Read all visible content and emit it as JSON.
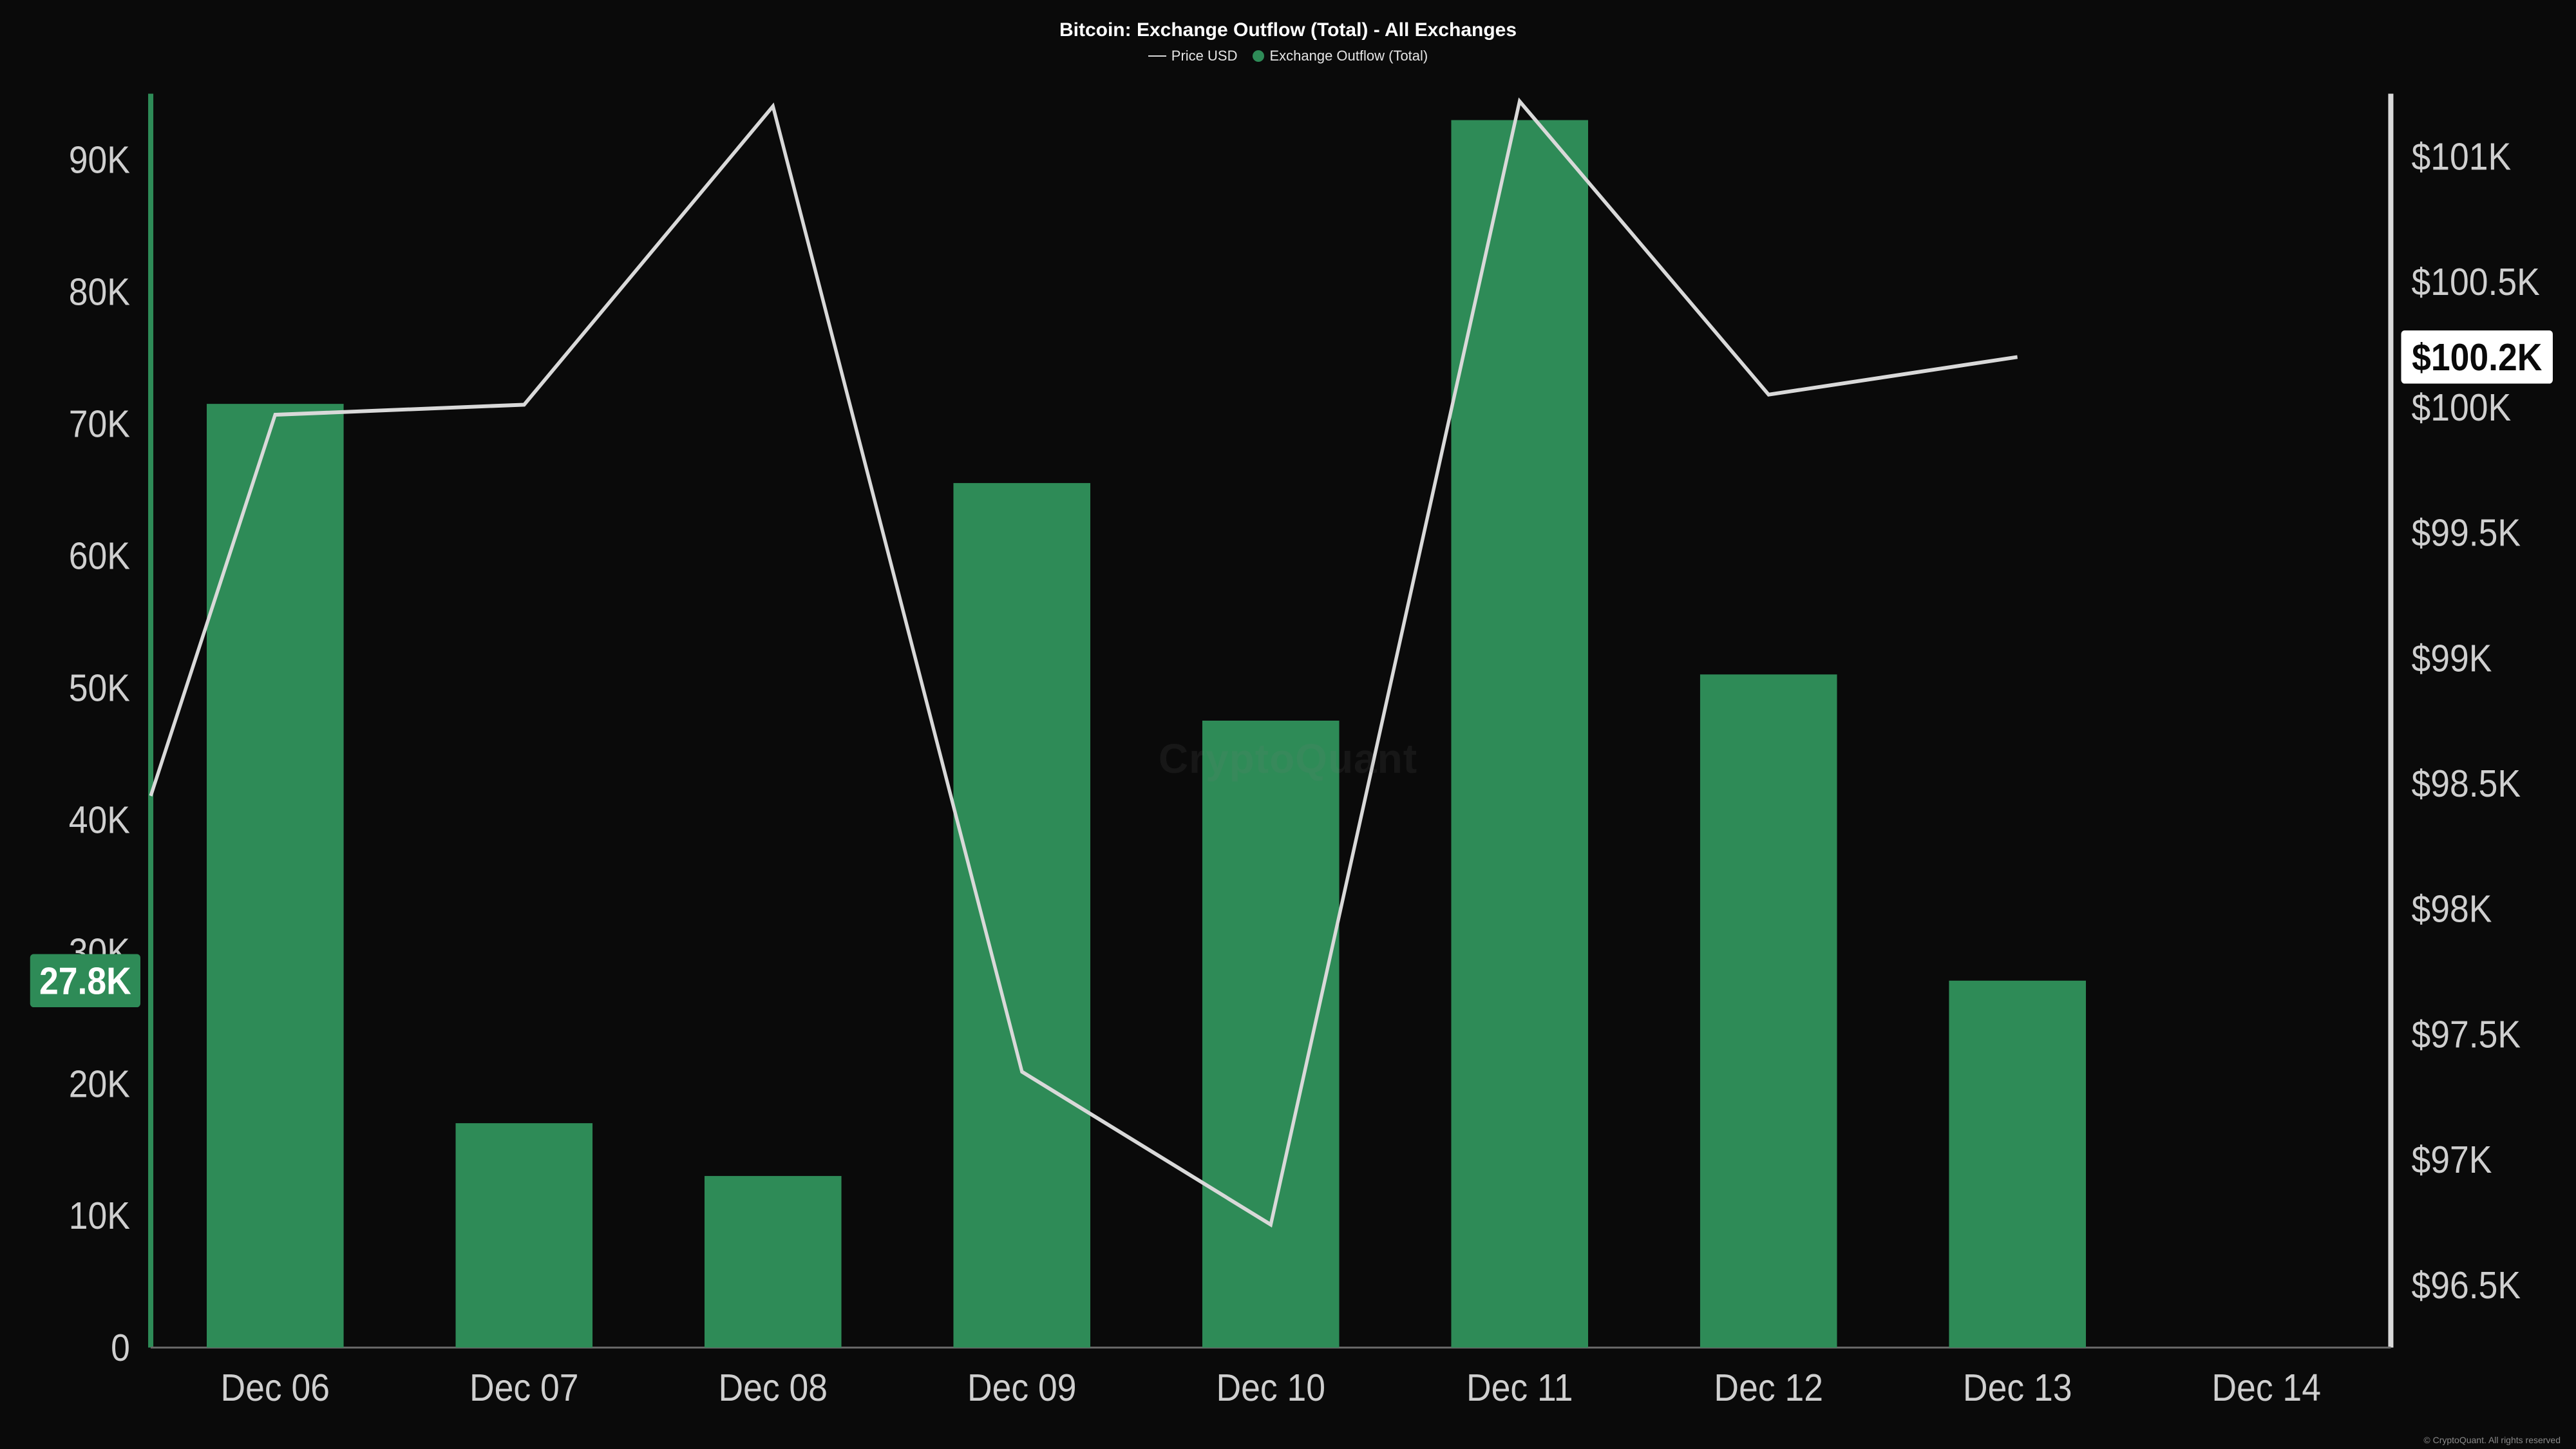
{
  "chart": {
    "type": "bar+line",
    "title": "Bitcoin: Exchange Outflow (Total) - All Exchanges",
    "background_color": "#0a0a0a",
    "watermark": "CryptoQuant",
    "copyright": "© CryptoQuant. All rights reserved",
    "legend": {
      "line_label": "Price USD",
      "bar_label": "Exchange Outflow (Total)",
      "line_color": "#d9d9d9",
      "bar_color": "#2e8b57"
    },
    "x": {
      "categories": [
        "Dec 06",
        "Dec 07",
        "Dec 08",
        "Dec 09",
        "Dec 10",
        "Dec 11",
        "Dec 12",
        "Dec 13",
        "Dec 14"
      ],
      "label_fontsize": 20,
      "label_color": "#cfcfcf"
    },
    "y_left": {
      "min": 0,
      "max": 95000,
      "ticks": [
        0,
        10000,
        20000,
        30000,
        40000,
        50000,
        60000,
        70000,
        80000,
        90000
      ],
      "tick_labels": [
        "0",
        "10K",
        "20K",
        "30K",
        "40K",
        "50K",
        "60K",
        "70K",
        "80K",
        "90K"
      ],
      "axis_line_color": "#2e8b57",
      "label_fontsize": 20,
      "label_color": "#cfcfcf",
      "current_value": 27800,
      "current_label": "27.8K",
      "current_badge_bg": "#2e8b57",
      "current_badge_fg": "#ffffff"
    },
    "y_right": {
      "min": 96250,
      "max": 101250,
      "ticks": [
        96500,
        97000,
        97500,
        98000,
        98500,
        99000,
        99500,
        100000,
        100500,
        101000
      ],
      "tick_labels": [
        "$96.5K",
        "$97K",
        "$97.5K",
        "$98K",
        "$98.5K",
        "$99K",
        "$99.5K",
        "$100K",
        "$100.5K",
        "$101K"
      ],
      "axis_line_color": "#d9d9d9",
      "label_fontsize": 20,
      "label_color": "#cfcfcf",
      "current_value": 100200,
      "current_label": "$100.2K",
      "current_badge_bg": "#ffffff",
      "current_badge_fg": "#0a0a0a"
    },
    "bars": {
      "color": "#2e8b57",
      "width_ratio": 0.55,
      "values": [
        71500,
        17000,
        13000,
        65500,
        47500,
        93000,
        51000,
        27800,
        null
      ]
    },
    "line": {
      "color": "#d9d9d9",
      "width": 2,
      "x_positions": [
        -0.5,
        0,
        1,
        2,
        3,
        4,
        5,
        6,
        7
      ],
      "values": [
        98450,
        99970,
        100010,
        101200,
        97350,
        96740,
        101220,
        100050,
        100200
      ]
    },
    "axis_line_width": 3
  }
}
